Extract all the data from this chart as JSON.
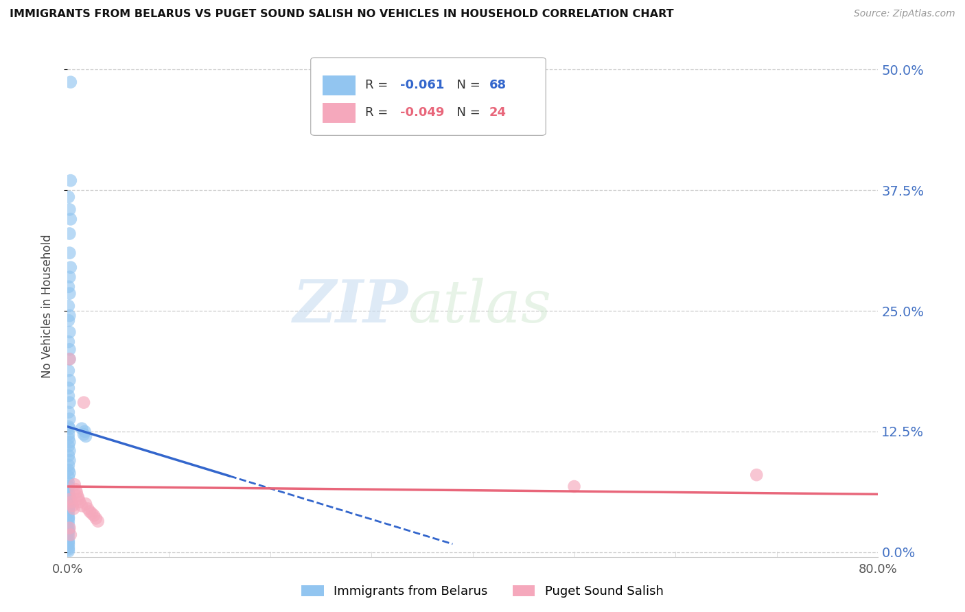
{
  "title": "IMMIGRANTS FROM BELARUS VS PUGET SOUND SALISH NO VEHICLES IN HOUSEHOLD CORRELATION CHART",
  "source": "Source: ZipAtlas.com",
  "ylabel": "No Vehicles in Household",
  "xlim": [
    0.0,
    0.8
  ],
  "ylim": [
    -0.005,
    0.515
  ],
  "yticks": [
    0.0,
    0.125,
    0.25,
    0.375,
    0.5
  ],
  "ytick_labels": [
    "0.0%",
    "12.5%",
    "25.0%",
    "37.5%",
    "50.0%"
  ],
  "xtick_vals": [
    0.0,
    0.1,
    0.2,
    0.3,
    0.4,
    0.5,
    0.6,
    0.7,
    0.8
  ],
  "xtick_labels": [
    "0.0%",
    "",
    "",
    "",
    "",
    "",
    "",
    "",
    "80.0%"
  ],
  "blue_R": -0.061,
  "blue_N": 68,
  "pink_R": -0.049,
  "pink_N": 24,
  "blue_color": "#92C5F0",
  "pink_color": "#F5A8BC",
  "blue_line_color": "#3366CC",
  "pink_line_color": "#E8667A",
  "blue_label": "Immigrants from Belarus",
  "pink_label": "Puget Sound Salish",
  "watermark_zip": "ZIP",
  "watermark_atlas": "atlas",
  "blue_scatter_x": [
    0.003,
    0.003,
    0.001,
    0.002,
    0.003,
    0.002,
    0.002,
    0.003,
    0.002,
    0.001,
    0.002,
    0.001,
    0.002,
    0.001,
    0.002,
    0.001,
    0.002,
    0.002,
    0.001,
    0.002,
    0.001,
    0.001,
    0.002,
    0.001,
    0.002,
    0.001,
    0.002,
    0.001,
    0.001,
    0.002,
    0.001,
    0.002,
    0.001,
    0.002,
    0.001,
    0.001,
    0.002,
    0.001,
    0.001,
    0.001,
    0.001,
    0.002,
    0.001,
    0.001,
    0.002,
    0.001,
    0.001,
    0.001,
    0.001,
    0.001,
    0.001,
    0.001,
    0.001,
    0.001,
    0.001,
    0.001,
    0.001,
    0.001,
    0.014,
    0.017,
    0.016,
    0.018,
    0.001,
    0.001,
    0.001,
    0.001,
    0.001,
    0.001
  ],
  "blue_scatter_y": [
    0.487,
    0.385,
    0.368,
    0.355,
    0.345,
    0.33,
    0.31,
    0.295,
    0.285,
    0.275,
    0.268,
    0.255,
    0.245,
    0.24,
    0.228,
    0.218,
    0.21,
    0.2,
    0.188,
    0.178,
    0.17,
    0.162,
    0.155,
    0.145,
    0.138,
    0.13,
    0.128,
    0.122,
    0.118,
    0.114,
    0.11,
    0.105,
    0.1,
    0.095,
    0.09,
    0.085,
    0.082,
    0.078,
    0.072,
    0.068,
    0.062,
    0.058,
    0.055,
    0.052,
    0.048,
    0.044,
    0.04,
    0.036,
    0.032,
    0.028,
    0.024,
    0.02,
    0.016,
    0.012,
    0.008,
    0.005,
    0.003,
    0.001,
    0.128,
    0.125,
    0.122,
    0.12,
    0.068,
    0.055,
    0.045,
    0.035,
    0.022,
    0.01
  ],
  "pink_scatter_x": [
    0.002,
    0.003,
    0.004,
    0.005,
    0.006,
    0.007,
    0.008,
    0.009,
    0.01,
    0.011,
    0.012,
    0.014,
    0.016,
    0.018,
    0.02,
    0.022,
    0.024,
    0.026,
    0.028,
    0.03,
    0.002,
    0.003,
    0.5,
    0.68
  ],
  "pink_scatter_y": [
    0.2,
    0.055,
    0.052,
    0.048,
    0.045,
    0.07,
    0.065,
    0.062,
    0.058,
    0.055,
    0.052,
    0.048,
    0.155,
    0.05,
    0.045,
    0.042,
    0.04,
    0.038,
    0.035,
    0.032,
    0.025,
    0.018,
    0.068,
    0.08
  ],
  "blue_trendline_x0": 0.0,
  "blue_trendline_x_solid_end": 0.16,
  "blue_trendline_x_dash_end": 0.38,
  "blue_trendline_y0": 0.13,
  "blue_trendline_slope": -0.32,
  "pink_trendline_y0": 0.068,
  "pink_trendline_slope": -0.01
}
